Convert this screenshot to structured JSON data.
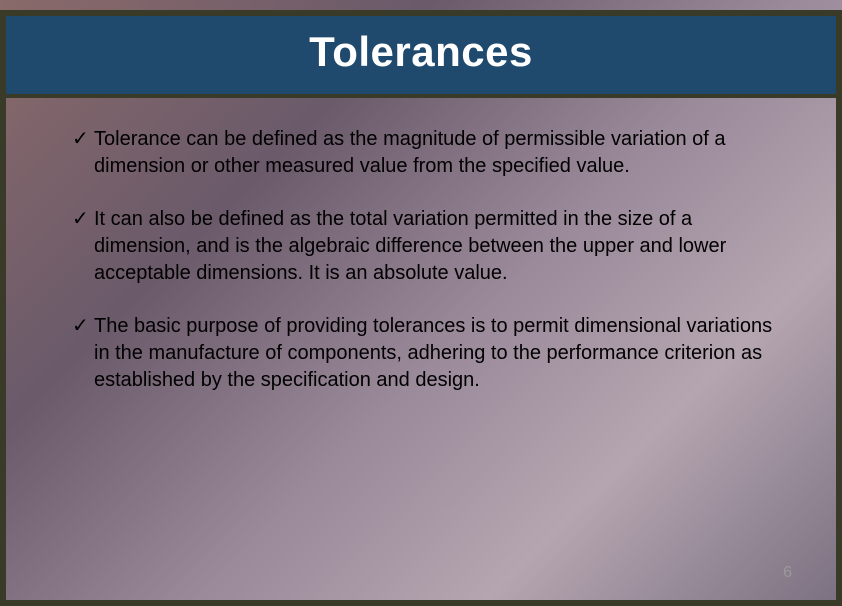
{
  "title": "Tolerances",
  "bullets": [
    "Tolerance can be defined as the magnitude of permissible variation of a dimension or other measured value from the specified value.",
    "It can also be defined as the total variation permitted in the size of a dimension, and is the algebraic difference between the upper and lower acceptable dimensions. It is an absolute value.",
    "The basic purpose of providing tolerances is to permit dimensional variations in the manufacture of components, adhering to the performance criterion as established by the specification and design."
  ],
  "page_number": "6",
  "colors": {
    "title_bar_bg": "#1f4a6e",
    "title_text": "#ffffff",
    "border": "#3a3a28",
    "body_text": "#000000",
    "page_number": "#9a9a9a"
  },
  "typography": {
    "title_fontsize": 42,
    "body_fontsize": 20,
    "title_font": "Trebuchet MS",
    "body_font": "Verdana"
  }
}
